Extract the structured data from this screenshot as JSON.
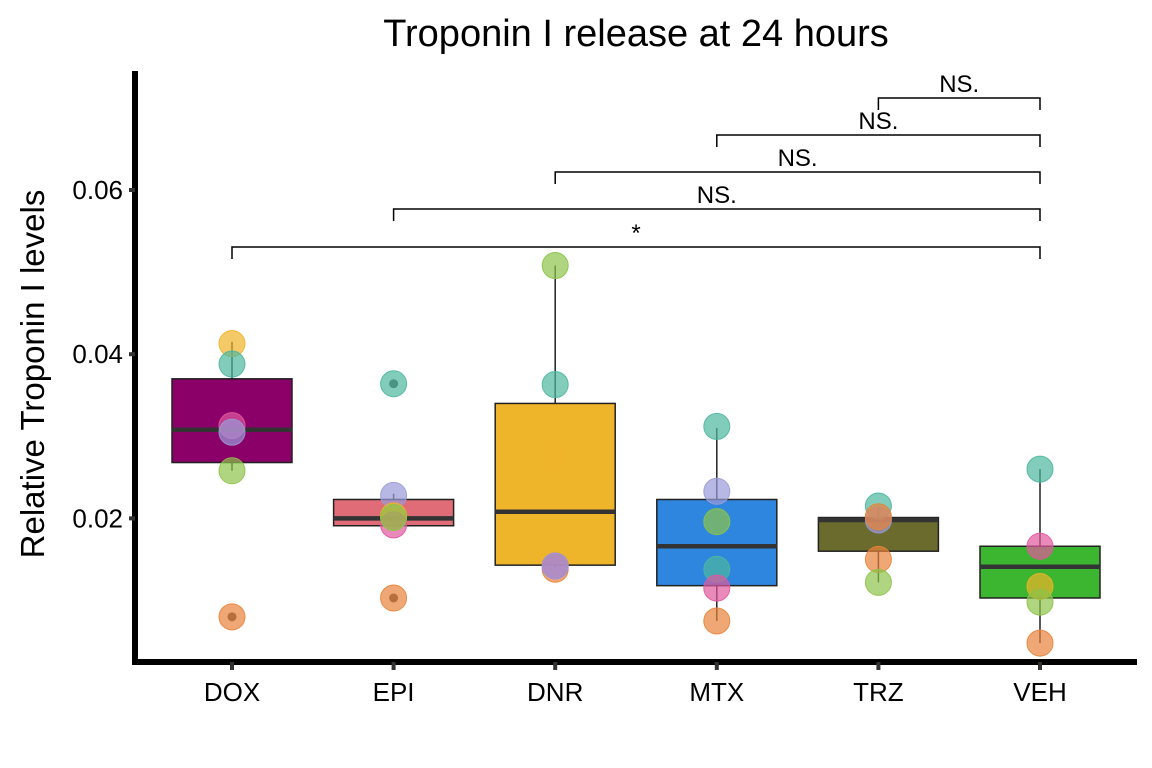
{
  "chart_data": {
    "type": "box",
    "title": "Troponin I release at 24 hours",
    "xlabel": "",
    "ylabel": "Relative Troponin I levels",
    "ylim": [
      0.0025,
      0.0745
    ],
    "yticks": [
      "0.02",
      "0.04",
      "0.06"
    ],
    "ytick_values": [
      0.02,
      0.04,
      0.06
    ],
    "categories": [
      "DOX",
      "EPI",
      "DNR",
      "MTX",
      "TRZ",
      "VEH"
    ],
    "box_colors": [
      "#8B0068",
      "#E06C78",
      "#EFB52A",
      "#2E86DE",
      "#6B6B2E",
      "#3CB531"
    ],
    "boxes": [
      {
        "category": "DOX",
        "whisker_low": 0.0258,
        "q1": 0.0268,
        "median": 0.0308,
        "q3": 0.037,
        "whisker_high": 0.0415
      },
      {
        "category": "EPI",
        "whisker_low": 0.019,
        "q1": 0.0191,
        "median": 0.02,
        "q3": 0.0223,
        "whisker_high": 0.023
      },
      {
        "category": "DNR",
        "whisker_low": 0.0138,
        "q1": 0.0143,
        "median": 0.0208,
        "q3": 0.034,
        "whisker_high": 0.0508
      },
      {
        "category": "MTX",
        "whisker_low": 0.0075,
        "q1": 0.0118,
        "median": 0.0166,
        "q3": 0.0223,
        "whisker_high": 0.031
      },
      {
        "category": "TRZ",
        "whisker_low": 0.0122,
        "q1": 0.016,
        "median": 0.0198,
        "q3": 0.0201,
        "whisker_high": 0.0214
      },
      {
        "category": "VEH",
        "whisker_low": 0.0048,
        "q1": 0.0103,
        "median": 0.0141,
        "q3": 0.0166,
        "whisker_high": 0.026
      }
    ],
    "outliers": [
      {
        "category": "DOX",
        "value": 0.008
      },
      {
        "category": "EPI",
        "value": 0.0364
      },
      {
        "category": "EPI",
        "value": 0.0103
      }
    ],
    "point_colors": [
      "#F0B429",
      "#4DB6A0",
      "#E0589C",
      "#9A9AD8",
      "#8DC34A",
      "#E8833A"
    ],
    "points": [
      {
        "category": "DOX",
        "value": 0.0413,
        "color": 0
      },
      {
        "category": "DOX",
        "value": 0.0388,
        "color": 1
      },
      {
        "category": "DOX",
        "value": 0.0313,
        "color": 2
      },
      {
        "category": "DOX",
        "value": 0.0305,
        "color": 3
      },
      {
        "category": "DOX",
        "value": 0.0258,
        "color": 4
      },
      {
        "category": "DOX",
        "value": 0.008,
        "color": 5
      },
      {
        "category": "EPI",
        "value": 0.0364,
        "color": 1
      },
      {
        "category": "EPI",
        "value": 0.0228,
        "color": 3
      },
      {
        "category": "EPI",
        "value": 0.0203,
        "color": 0
      },
      {
        "category": "EPI",
        "value": 0.0192,
        "color": 2
      },
      {
        "category": "EPI",
        "value": 0.0201,
        "color": 4
      },
      {
        "category": "EPI",
        "value": 0.0103,
        "color": 5
      },
      {
        "category": "DNR",
        "value": 0.0508,
        "color": 4
      },
      {
        "category": "DNR",
        "value": 0.0363,
        "color": 1
      },
      {
        "category": "DNR",
        "value": 0.0275,
        "color": 0
      },
      {
        "category": "DNR",
        "value": 0.0138,
        "color": 5
      },
      {
        "category": "DNR",
        "value": 0.0142,
        "color": 2
      },
      {
        "category": "DNR",
        "value": 0.0142,
        "color": 3
      },
      {
        "category": "MTX",
        "value": 0.0312,
        "color": 1
      },
      {
        "category": "MTX",
        "value": 0.0233,
        "color": 3
      },
      {
        "category": "MTX",
        "value": 0.0196,
        "color": 4
      },
      {
        "category": "MTX",
        "value": 0.0138,
        "color": 1
      },
      {
        "category": "MTX",
        "value": 0.0115,
        "color": 2
      },
      {
        "category": "MTX",
        "value": 0.0075,
        "color": 5
      },
      {
        "category": "TRZ",
        "value": 0.0215,
        "color": 1
      },
      {
        "category": "TRZ",
        "value": 0.0198,
        "color": 3
      },
      {
        "category": "TRZ",
        "value": 0.0202,
        "color": 5
      },
      {
        "category": "TRZ",
        "value": 0.015,
        "color": 5
      },
      {
        "category": "TRZ",
        "value": 0.0122,
        "color": 4
      },
      {
        "category": "VEH",
        "value": 0.026,
        "color": 1
      },
      {
        "category": "VEH",
        "value": 0.0166,
        "color": 2
      },
      {
        "category": "VEH",
        "value": 0.0117,
        "color": 0
      },
      {
        "category": "VEH",
        "value": 0.0098,
        "color": 4
      },
      {
        "category": "VEH",
        "value": 0.0048,
        "color": 5
      }
    ],
    "comparisons": [
      {
        "from": "DOX",
        "to": "VEH",
        "label": "*"
      },
      {
        "from": "EPI",
        "to": "VEH",
        "label": "NS."
      },
      {
        "from": "DNR",
        "to": "VEH",
        "label": "NS."
      },
      {
        "from": "MTX",
        "to": "VEH",
        "label": "NS."
      },
      {
        "from": "TRZ",
        "to": "VEH",
        "label": "NS."
      }
    ],
    "grid": false,
    "legend": "none"
  }
}
